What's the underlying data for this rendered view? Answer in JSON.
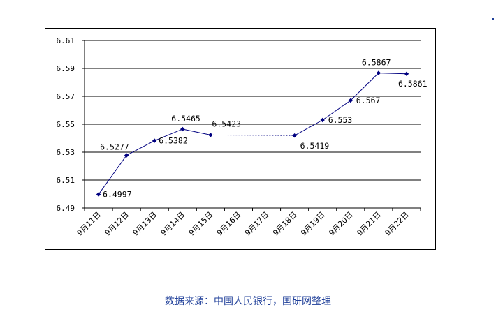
{
  "chart_data": {
    "type": "line",
    "categories": [
      "9月11日",
      "9月12日",
      "9月13日",
      "9月14日",
      "9月15日",
      "9月16日",
      "9月17日",
      "9月18日",
      "9月19日",
      "9月20日",
      "9月21日",
      "9月22日"
    ],
    "values": [
      6.4997,
      6.5277,
      6.5382,
      6.5465,
      6.5423,
      null,
      null,
      6.5419,
      6.553,
      6.567,
      6.5867,
      6.5861
    ],
    "data_labels": [
      "6.4997",
      "6.5277",
      "6.5382",
      "6.5465",
      "6.5423",
      "",
      "",
      "6.5419",
      "6.553",
      "6.567",
      "6.5867",
      "6.5861"
    ],
    "y_ticks": [
      "6.49",
      "6.51",
      "6.53",
      "6.55",
      "6.57",
      "6.59",
      "6.61"
    ],
    "ylim": [
      6.49,
      6.61
    ],
    "gap_connector": "dotted",
    "grid": "horizontal",
    "line_color": "#000080",
    "marker": "diamond"
  },
  "source_note": "数据来源：中国人民银行，国研网整理"
}
